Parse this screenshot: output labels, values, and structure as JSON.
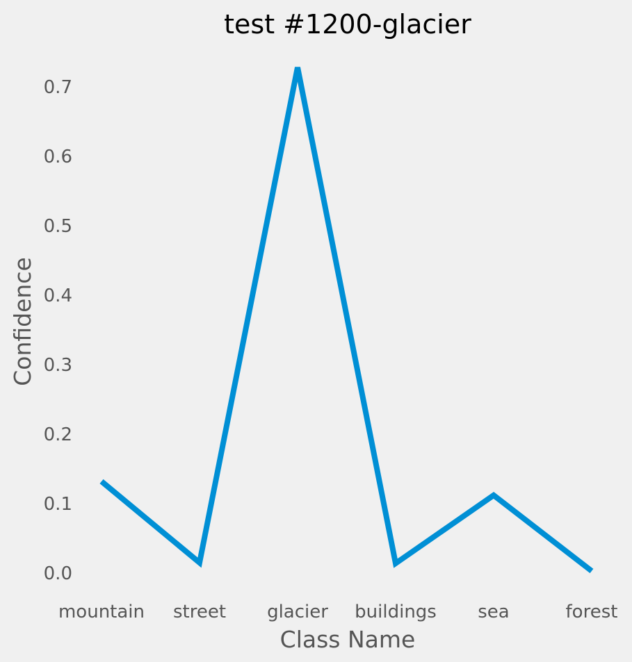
{
  "chart_data": {
    "type": "line",
    "title": "test #1200-glacier",
    "xlabel": "Class Name",
    "ylabel": "Confidence",
    "categories": [
      "mountain",
      "street",
      "glacier",
      "buildings",
      "sea",
      "forest"
    ],
    "series": [
      {
        "values": [
          0.132,
          0.015,
          0.728,
          0.014,
          0.112,
          0.003
        ]
      }
    ],
    "yticks": [
      "0.0",
      "0.1",
      "0.2",
      "0.3",
      "0.4",
      "0.5",
      "0.6",
      "0.7"
    ],
    "ylim": [
      -0.03,
      0.755
    ],
    "grid": false,
    "colors": {
      "line": "#008fd5",
      "background": "#f0f0f0",
      "text": "#555555"
    }
  }
}
